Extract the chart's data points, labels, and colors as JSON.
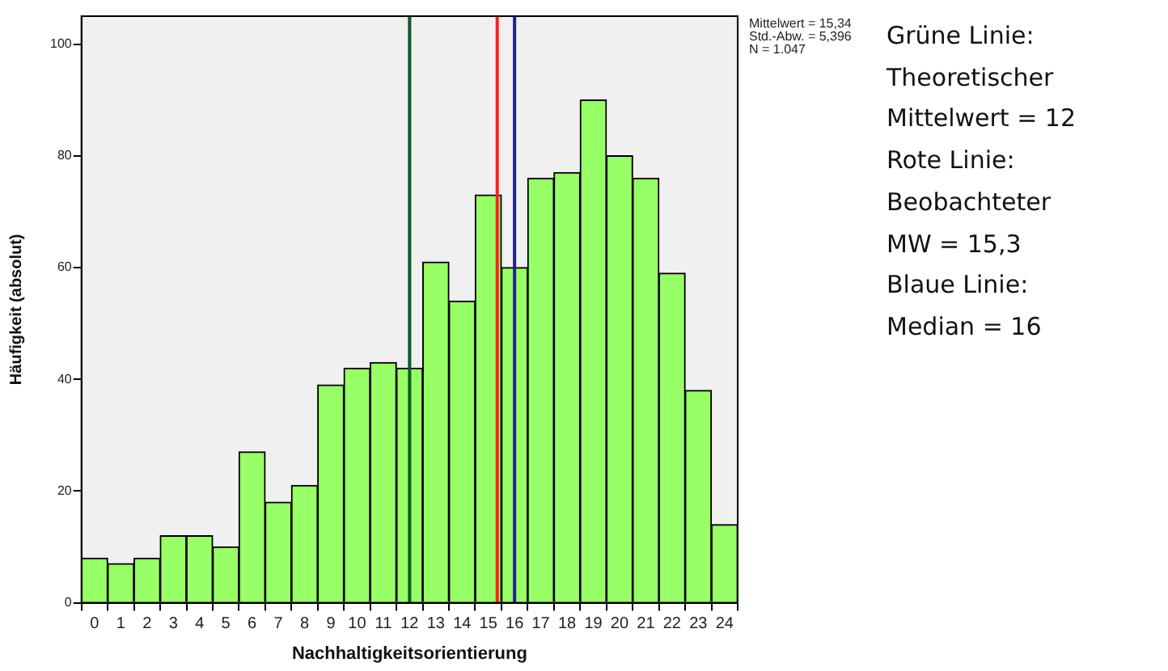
{
  "chart_data": {
    "type": "histogram",
    "xlabel": "Nachhaltigkeitsorientierung",
    "ylabel": "Häufigkeit (absolut)",
    "bins": [
      -0.5,
      0.5,
      1.5,
      2.5,
      3.5,
      4.5,
      5.5,
      6.5,
      7.5,
      8.5,
      9.5,
      10.5,
      11.5,
      12.5,
      13.5,
      14.5,
      15.5,
      16.5,
      17.5,
      18.5,
      19.5,
      20.5,
      21.5,
      22.5,
      23.5,
      24.5
    ],
    "values": [
      8,
      7,
      8,
      12,
      12,
      10,
      27,
      18,
      21,
      39,
      42,
      43,
      42,
      61,
      54,
      73,
      60,
      76,
      77,
      90,
      80,
      76,
      59,
      38,
      14
    ],
    "color": "#99ff66",
    "xlim": [
      -0.5,
      24.5
    ],
    "xticks": [
      0,
      1,
      2,
      3,
      4,
      5,
      6,
      7,
      8,
      9,
      10,
      11,
      12,
      13,
      14,
      15,
      16,
      17,
      18,
      19,
      20,
      21,
      22,
      23,
      24
    ],
    "ylim": [
      0,
      105
    ],
    "yticks": [
      0,
      20,
      40,
      60,
      80,
      100
    ],
    "grid": false,
    "legend": false,
    "ref_lines": [
      {
        "axis": "x",
        "value": 12,
        "color": "#0b5a2a"
      },
      {
        "axis": "x",
        "value": 15.34,
        "color": "#ff2020"
      },
      {
        "axis": "x",
        "value": 16,
        "color": "#202090"
      }
    ],
    "annotations": [
      "Mittelwert = 15,34",
      "Std.-Abw. = 5,396",
      "N = 1.047",
      "Grüne Linie:",
      "Theoretischer",
      "Mittelwert = 12",
      "Rote Linie:",
      "Beobachteter",
      "MW = 15,3",
      "Blaue Linie:",
      "Median = 16"
    ]
  }
}
